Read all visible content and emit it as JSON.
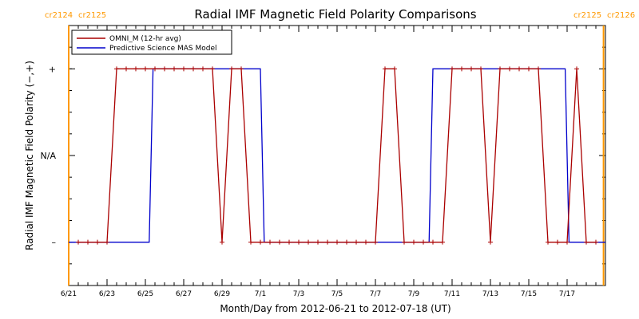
{
  "chart_data": {
    "type": "line",
    "title": "Radial IMF Magnetic Field Polarity Comparisons",
    "xlabel": "Month/Day from 2012-06-21 to 2012-07-18 (UT)",
    "ylabel": "Radial IMF Magnetic Field Polarity (−,+)",
    "xlim": [
      0,
      28
    ],
    "ylim": [
      -1.5,
      1.5
    ],
    "x_ticks": [
      {
        "x": 0,
        "label": "6/21"
      },
      {
        "x": 2,
        "label": "6/23"
      },
      {
        "x": 4,
        "label": "6/25"
      },
      {
        "x": 6,
        "label": "6/27"
      },
      {
        "x": 8,
        "label": "6/29"
      },
      {
        "x": 10,
        "label": "7/1"
      },
      {
        "x": 12,
        "label": "7/3"
      },
      {
        "x": 14,
        "label": "7/5"
      },
      {
        "x": 16,
        "label": "7/7"
      },
      {
        "x": 18,
        "label": "7/9"
      },
      {
        "x": 20,
        "label": "7/11"
      },
      {
        "x": 22,
        "label": "7/13"
      },
      {
        "x": 24,
        "label": "7/15"
      },
      {
        "x": 26,
        "label": "7/17"
      }
    ],
    "y_ticks": [
      {
        "y": 1,
        "label": "+"
      },
      {
        "y": 0,
        "label": "N/A"
      },
      {
        "y": -1,
        "label": "–"
      }
    ],
    "legend_position": "top-left",
    "carrington": {
      "color": "#ff9900",
      "lines": [
        {
          "x": 0,
          "left": "cr2124",
          "right": "cr2125"
        },
        {
          "x": 27.9,
          "left": "cr2125",
          "right": "cr2126"
        }
      ]
    },
    "series": [
      {
        "name": "OMNI_M (12-hr avg)",
        "color": "#aa0000",
        "markers": true,
        "x": [
          0.5,
          1.0,
          1.5,
          2.0,
          2.5,
          3.0,
          3.5,
          4.0,
          4.5,
          5.0,
          5.5,
          6.0,
          6.5,
          7.0,
          7.5,
          8.0,
          8.5,
          9.0,
          9.5,
          10.0,
          10.5,
          11.0,
          11.5,
          12.0,
          12.5,
          13.0,
          13.5,
          14.0,
          14.5,
          15.0,
          15.5,
          16.0,
          16.5,
          17.0,
          17.5,
          18.0,
          18.5,
          19.0,
          19.5,
          20.0,
          20.5,
          21.0,
          21.5,
          22.0,
          22.5,
          23.0,
          23.5,
          24.0,
          24.5,
          25.0,
          25.5,
          26.0,
          26.5,
          27.0,
          27.5
        ],
        "y": [
          -1,
          -1,
          -1,
          -1,
          1,
          1,
          1,
          1,
          1,
          1,
          1,
          1,
          1,
          1,
          1,
          -1,
          1,
          1,
          -1,
          -1,
          -1,
          -1,
          -1,
          -1,
          -1,
          -1,
          -1,
          -1,
          -1,
          -1,
          -1,
          -1,
          1,
          1,
          -1,
          -1,
          -1,
          -1,
          -1,
          1,
          1,
          1,
          1,
          -1,
          1,
          1,
          1,
          1,
          1,
          -1,
          -1,
          -1,
          1,
          -1,
          -1
        ]
      },
      {
        "name": "Predictive Science MAS Model",
        "color": "#0000cc",
        "markers": false,
        "x": [
          0.0,
          4.2,
          4.4,
          10.0,
          10.2,
          18.8,
          19.0,
          25.9,
          26.1,
          28.0
        ],
        "y": [
          -1,
          -1,
          1,
          1,
          -1,
          -1,
          1,
          1,
          -1,
          -1
        ]
      }
    ]
  }
}
